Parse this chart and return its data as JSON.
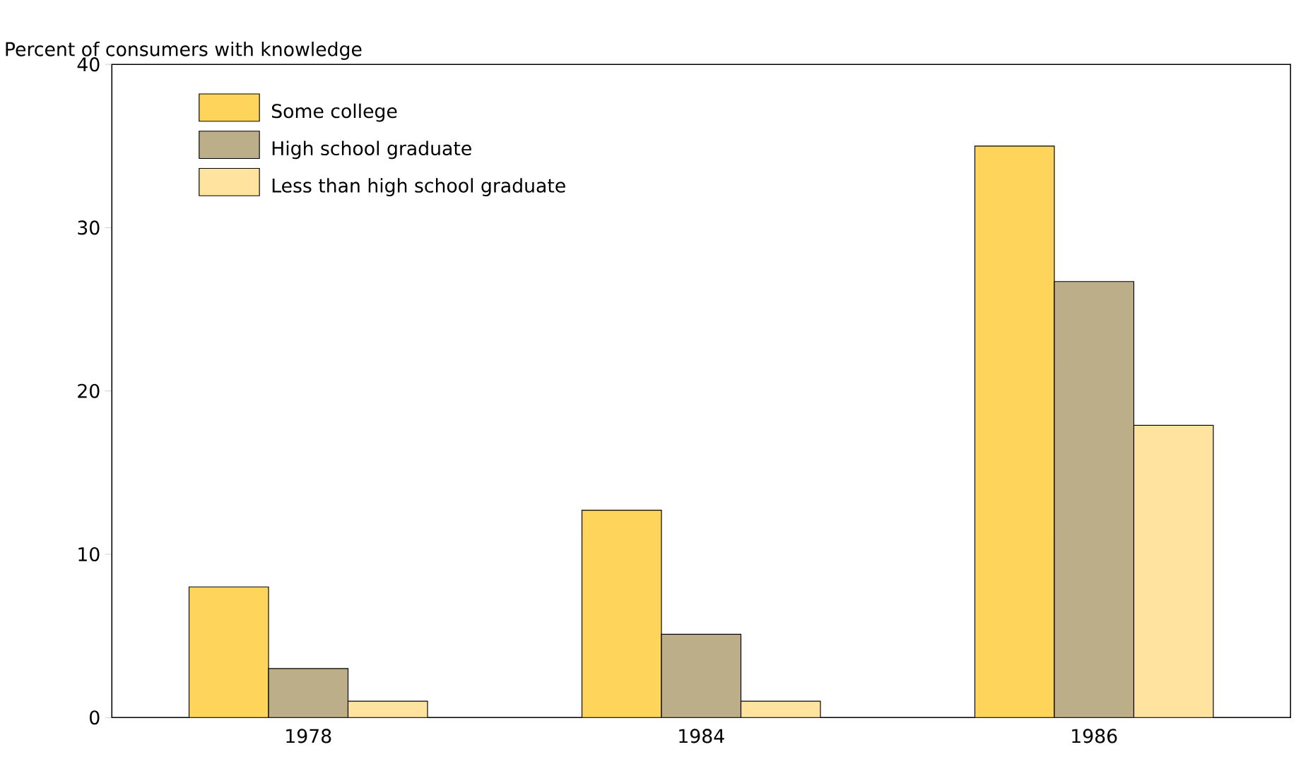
{
  "chart_data": {
    "type": "bar",
    "ylabel": "Percent of consumers with knowledge",
    "categories": [
      "1978",
      "1984",
      "1986"
    ],
    "series": [
      {
        "name": "Some college",
        "color": "#ffd45a",
        "values": [
          8,
          12.7,
          35
        ]
      },
      {
        "name": "High school graduate",
        "color": "#bcae88",
        "values": [
          3,
          5.1,
          26.7
        ]
      },
      {
        "name": "Less than high school graduate",
        "color": "#ffe39e",
        "values": [
          1,
          1,
          17.9
        ]
      }
    ],
    "ylim": [
      0,
      40
    ],
    "yticks": [
      0,
      10,
      20,
      30,
      40
    ],
    "legend": "top left",
    "grid": false
  }
}
